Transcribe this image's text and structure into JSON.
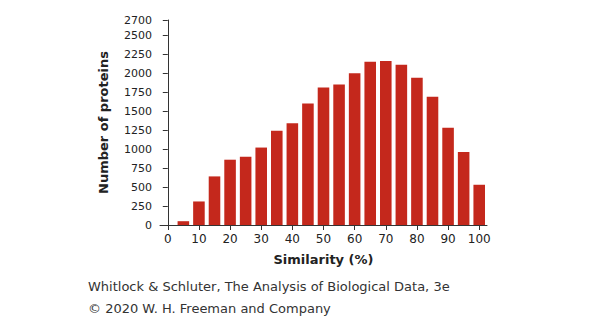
{
  "chart_data": {
    "type": "histogram",
    "x_label": "Similarity (%)",
    "y_label": "Number of proteins",
    "bins": [
      2.5,
      7.5,
      12.5,
      17.5,
      22.5,
      27.5,
      32.5,
      37.5,
      42.5,
      47.5,
      52.5,
      57.5,
      62.5,
      67.5,
      72.5,
      77.5,
      82.5,
      87.5,
      92.5,
      97.5,
      102.5
    ],
    "values": [
      50,
      310,
      640,
      860,
      900,
      1020,
      1240,
      1340,
      1600,
      1810,
      1850,
      2000,
      2150,
      2160,
      2110,
      1940,
      1690,
      1280,
      960,
      530
    ],
    "color": "#c4281c",
    "xlim": [
      -2.5,
      102.5
    ],
    "xticks": [
      0,
      10,
      20,
      30,
      40,
      50,
      60,
      70,
      80,
      90,
      100
    ],
    "ylim": [
      0,
      2700
    ],
    "yticks": [
      0,
      250,
      500,
      750,
      1000,
      1250,
      1500,
      1750,
      2000,
      2250,
      2500,
      2700
    ],
    "grid": false,
    "annotations": [
      "Whitlock & Schluter, The Analysis of Biological Data, 3e",
      "© 2020 W. H. Freeman and Company"
    ]
  }
}
